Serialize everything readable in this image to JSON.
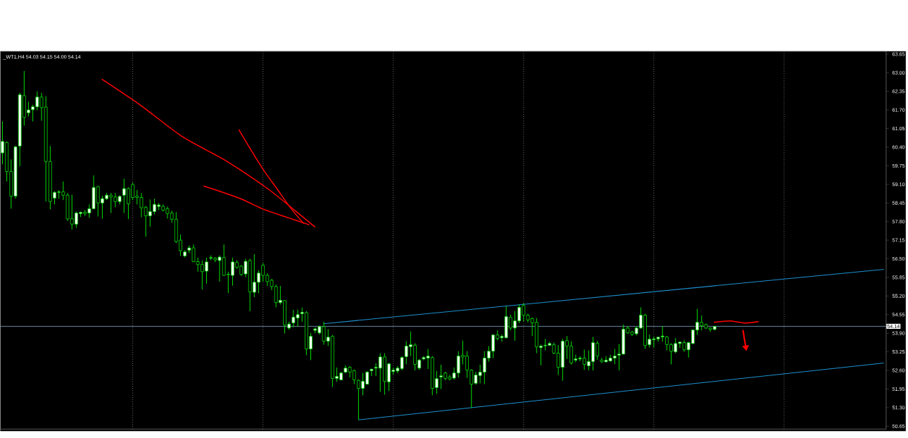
{
  "chart_data": {
    "type": "candlestick",
    "title": "_WT1,H4  54.03 54.15 54.00 54.14",
    "categories": [
      null,
      null,
      null,
      null,
      null,
      null,
      null,
      null,
      null,
      null,
      null,
      null,
      null,
      null,
      null,
      null,
      null,
      null,
      null,
      null,
      null,
      null,
      null,
      null,
      null,
      null,
      null,
      null,
      null,
      null,
      null,
      null,
      null,
      null,
      null,
      null,
      null,
      null,
      null,
      null,
      null,
      null,
      null,
      null,
      null,
      null,
      null,
      null,
      null,
      null,
      null,
      null,
      null,
      null,
      null,
      null,
      null,
      null,
      null,
      null,
      null,
      null,
      null,
      null,
      null,
      null,
      null,
      null,
      null,
      null,
      null,
      null,
      null,
      null,
      null,
      null,
      null,
      null,
      null,
      null,
      null,
      null,
      null,
      null,
      null,
      null,
      null,
      null,
      null,
      null,
      null,
      null,
      null,
      null,
      null,
      null,
      null,
      null,
      null,
      null,
      null,
      null,
      null,
      null,
      null,
      null,
      null,
      null,
      null,
      null,
      null,
      null,
      null,
      null,
      null,
      null,
      null,
      null,
      null,
      null,
      null,
      null,
      null,
      null,
      null,
      null,
      null,
      null,
      null,
      null,
      null,
      null,
      null,
      null,
      null,
      null,
      null,
      null,
      null,
      null,
      null,
      null,
      null,
      null,
      null,
      null,
      null,
      null,
      null,
      null,
      null,
      null,
      null,
      null,
      null,
      null,
      null,
      null,
      null,
      null,
      null,
      null,
      null,
      null,
      null,
      null,
      null,
      null,
      null,
      null,
      null,
      null,
      null,
      null,
      null,
      null,
      null,
      null,
      null,
      null,
      null,
      null,
      null,
      null,
      null,
      null,
      null,
      null,
      null,
      null,
      null,
      null,
      null,
      null,
      null,
      null,
      null,
      null,
      null,
      null,
      null,
      null,
      null,
      null
    ],
    "ohlc": [
      [
        60.2,
        61.3,
        59.8,
        60.6
      ],
      [
        60.56,
        60.6,
        59.2,
        59.55
      ],
      [
        59.55,
        59.97,
        58.25,
        58.69
      ],
      [
        58.69,
        60.45,
        58.6,
        60.41
      ],
      [
        60.44,
        62.3,
        59.73,
        62.23
      ],
      [
        62.2,
        63.06,
        61.15,
        61.44
      ],
      [
        61.6,
        61.98,
        61.47,
        61.7
      ],
      [
        61.71,
        61.88,
        61.3,
        61.81
      ],
      [
        61.81,
        62.35,
        61.69,
        62.15
      ],
      [
        62.15,
        62.3,
        61.32,
        61.78
      ],
      [
        61.8,
        62.18,
        58.5,
        59.9
      ],
      [
        59.9,
        60.44,
        58.23,
        58.5
      ],
      [
        58.62,
        58.86,
        58.4,
        58.82
      ],
      [
        58.82,
        58.9,
        58.6,
        58.84
      ],
      [
        58.84,
        59.2,
        58.55,
        58.72
      ],
      [
        58.72,
        58.8,
        57.82,
        57.89
      ],
      [
        57.9,
        58.74,
        57.52,
        57.71
      ],
      [
        57.71,
        58.15,
        57.58,
        58.1
      ],
      [
        58.08,
        58.15,
        57.96,
        58.12
      ],
      [
        58.13,
        58.2,
        58.0,
        58.08
      ],
      [
        58.1,
        58.4,
        57.93,
        58.25
      ],
      [
        58.25,
        59.41,
        58.23,
        58.99
      ],
      [
        59.02,
        59.05,
        57.98,
        58.45
      ],
      [
        58.45,
        58.7,
        57.9,
        58.6
      ],
      [
        58.6,
        58.8,
        58.55,
        58.72
      ],
      [
        58.72,
        58.8,
        58.1,
        58.66
      ],
      [
        58.66,
        58.8,
        58.3,
        58.5
      ],
      [
        58.5,
        58.72,
        58.4,
        58.68
      ],
      [
        58.72,
        59.3,
        58.1,
        58.95
      ],
      [
        58.95,
        59.0,
        57.89,
        58.42
      ],
      [
        59.09,
        59.16,
        58.55,
        58.64
      ],
      [
        58.69,
        58.9,
        58.4,
        58.64
      ],
      [
        58.64,
        58.8,
        57.95,
        58.28
      ],
      [
        58.3,
        58.35,
        57.27,
        58.0
      ],
      [
        58.0,
        58.57,
        57.62,
        58.15
      ],
      [
        58.15,
        58.6,
        58.05,
        58.4
      ],
      [
        58.33,
        58.45,
        58.2,
        58.38
      ],
      [
        58.33,
        58.4,
        58.15,
        58.2
      ],
      [
        58.25,
        58.33,
        57.9,
        58.08
      ],
      [
        58.1,
        58.18,
        57.76,
        57.88
      ],
      [
        57.88,
        58.13,
        57.05,
        57.1
      ],
      [
        57.15,
        57.35,
        56.6,
        56.78
      ],
      [
        56.6,
        56.8,
        56.55,
        56.74
      ],
      [
        56.8,
        56.97,
        56.7,
        56.88
      ],
      [
        56.88,
        57.0,
        56.38,
        56.4
      ],
      [
        56.4,
        56.54,
        56.05,
        56.3
      ],
      [
        56.3,
        56.44,
        55.43,
        56.05
      ],
      [
        56.07,
        56.54,
        55.63,
        56.39
      ],
      [
        56.52,
        56.62,
        56.45,
        56.54
      ],
      [
        56.52,
        56.56,
        56.38,
        56.46
      ],
      [
        56.44,
        56.62,
        55.7,
        56.56
      ],
      [
        56.54,
        57.0,
        55.9,
        55.92
      ],
      [
        55.96,
        56.05,
        55.3,
        55.94
      ],
      [
        55.92,
        56.54,
        55.56,
        56.39
      ],
      [
        56.37,
        56.45,
        56.15,
        56.2
      ],
      [
        56.24,
        56.28,
        55.9,
        55.95
      ],
      [
        55.97,
        56.5,
        55.85,
        56.41
      ],
      [
        56.44,
        56.5,
        54.67,
        55.34
      ],
      [
        55.33,
        56.66,
        55.16,
        55.68
      ],
      [
        55.68,
        56.1,
        55.3,
        56.0
      ],
      [
        56.27,
        56.35,
        55.7,
        55.92
      ],
      [
        55.92,
        56.0,
        55.55,
        55.7
      ],
      [
        55.75,
        55.8,
        55.4,
        55.53
      ],
      [
        55.53,
        55.6,
        54.8,
        54.97
      ],
      [
        54.97,
        55.55,
        54.9,
        55.05
      ],
      [
        55.04,
        55.06,
        53.89,
        54.18
      ],
      [
        54.08,
        54.3,
        54.02,
        54.22
      ],
      [
        54.26,
        54.72,
        54.1,
        54.46
      ],
      [
        54.43,
        54.72,
        54.13,
        54.55
      ],
      [
        54.58,
        54.8,
        54.3,
        54.63
      ],
      [
        54.62,
        54.67,
        53.13,
        53.35
      ],
      [
        53.35,
        53.91,
        52.96,
        53.79
      ],
      [
        54.0,
        54.1,
        53.9,
        54.05
      ],
      [
        53.91,
        54.17,
        53.85,
        54.13
      ],
      [
        54.13,
        54.3,
        53.5,
        53.62
      ],
      [
        53.62,
        54.04,
        53.45,
        53.76
      ],
      [
        53.79,
        53.84,
        52.02,
        52.32
      ],
      [
        52.32,
        52.7,
        52.2,
        52.39
      ],
      [
        52.27,
        52.55,
        52.25,
        52.51
      ],
      [
        52.54,
        52.78,
        52.5,
        52.68
      ],
      [
        52.71,
        52.75,
        52.35,
        52.54
      ],
      [
        52.59,
        52.63,
        52.12,
        52.27
      ],
      [
        52.25,
        52.29,
        50.87,
        51.97
      ],
      [
        51.97,
        52.51,
        51.73,
        52.22
      ],
      [
        52.12,
        52.58,
        52.1,
        52.54
      ],
      [
        52.59,
        52.66,
        52.4,
        52.64
      ],
      [
        52.68,
        52.85,
        52.4,
        52.71
      ],
      [
        52.68,
        53.2,
        51.85,
        53.07
      ],
      [
        53.07,
        53.2,
        51.75,
        52.22
      ],
      [
        52.2,
        52.86,
        51.88,
        52.83
      ],
      [
        52.56,
        52.7,
        52.45,
        52.61
      ],
      [
        52.58,
        52.75,
        52.5,
        52.68
      ],
      [
        52.66,
        53.1,
        52.6,
        53.05
      ],
      [
        53.08,
        53.62,
        52.81,
        53.45
      ],
      [
        53.43,
        53.96,
        53.1,
        53.5
      ],
      [
        53.48,
        53.55,
        52.6,
        52.81
      ],
      [
        52.68,
        53.0,
        52.62,
        52.96
      ],
      [
        53.0,
        53.1,
        52.95,
        53.05
      ],
      [
        53.03,
        53.35,
        52.65,
        53.1
      ],
      [
        53.05,
        53.1,
        51.73,
        51.97
      ],
      [
        52.0,
        52.58,
        51.78,
        52.31
      ],
      [
        52.37,
        52.8,
        51.95,
        52.41
      ],
      [
        52.51,
        52.55,
        52.25,
        52.32
      ],
      [
        52.37,
        52.45,
        52.25,
        52.3
      ],
      [
        52.33,
        52.7,
        52.28,
        52.51
      ],
      [
        52.51,
        53.27,
        52.35,
        53.1
      ],
      [
        53.13,
        53.64,
        52.81,
        53.07
      ],
      [
        53.1,
        53.27,
        52.34,
        52.61
      ],
      [
        52.61,
        52.64,
        51.29,
        52.12
      ],
      [
        52.15,
        52.55,
        52.1,
        52.44
      ],
      [
        52.42,
        52.8,
        52.15,
        52.54
      ],
      [
        52.54,
        53.27,
        52.12,
        53.03
      ],
      [
        53.03,
        53.45,
        52.9,
        53.27
      ],
      [
        53.27,
        53.86,
        53.03,
        53.84
      ],
      [
        53.84,
        54.0,
        53.65,
        53.72
      ],
      [
        53.74,
        53.86,
        53.6,
        53.79
      ],
      [
        53.74,
        54.84,
        53.72,
        54.48
      ],
      [
        54.45,
        54.55,
        54.0,
        54.08
      ],
      [
        54.08,
        54.67,
        53.64,
        54.33
      ],
      [
        54.33,
        54.9,
        54.25,
        54.8
      ],
      [
        54.87,
        54.95,
        54.3,
        54.53
      ],
      [
        54.53,
        54.58,
        54.28,
        54.36
      ],
      [
        54.41,
        54.45,
        53.8,
        54.26
      ],
      [
        54.28,
        54.43,
        53.2,
        53.42
      ],
      [
        53.4,
        53.5,
        52.78,
        53.45
      ],
      [
        53.46,
        53.7,
        53.3,
        53.48
      ],
      [
        53.48,
        53.6,
        53.45,
        53.54
      ],
      [
        53.5,
        53.57,
        53.17,
        53.2
      ],
      [
        53.2,
        53.49,
        52.44,
        52.71
      ],
      [
        52.71,
        53.7,
        52.24,
        53.62
      ],
      [
        53.64,
        53.8,
        53.0,
        53.45
      ],
      [
        53.45,
        53.62,
        52.8,
        52.86
      ],
      [
        52.96,
        53.15,
        52.88,
        53.0
      ],
      [
        53.0,
        53.1,
        52.92,
        53.03
      ],
      [
        53.03,
        53.33,
        52.62,
        52.81
      ],
      [
        52.76,
        53.3,
        52.6,
        52.91
      ],
      [
        52.91,
        53.77,
        52.6,
        53.57
      ],
      [
        53.55,
        53.63,
        52.97,
        53.1
      ],
      [
        52.96,
        53.04,
        52.86,
        52.9
      ],
      [
        52.9,
        53.1,
        52.88,
        52.96
      ],
      [
        52.93,
        53.15,
        52.9,
        53.03
      ],
      [
        53.03,
        53.35,
        52.82,
        53.1
      ],
      [
        53.13,
        53.52,
        52.6,
        53.17
      ],
      [
        53.17,
        54.2,
        53.15,
        54.04
      ],
      [
        54.08,
        54.15,
        53.88,
        53.91
      ],
      [
        53.94,
        53.98,
        53.8,
        53.86
      ],
      [
        53.88,
        54.14,
        53.82,
        54.08
      ],
      [
        54.08,
        54.8,
        54.05,
        54.53
      ],
      [
        54.53,
        54.58,
        53.35,
        53.47
      ],
      [
        53.5,
        53.85,
        53.4,
        53.69
      ],
      [
        53.67,
        53.78,
        53.4,
        53.7
      ],
      [
        53.7,
        53.78,
        53.6,
        53.76
      ],
      [
        53.77,
        54.15,
        53.6,
        53.8
      ],
      [
        53.77,
        53.8,
        53.3,
        53.5
      ],
      [
        53.5,
        53.55,
        52.81,
        53.27
      ],
      [
        53.25,
        53.73,
        53.2,
        53.54
      ],
      [
        53.54,
        53.6,
        53.38,
        53.59
      ],
      [
        53.57,
        53.65,
        53.25,
        53.32
      ],
      [
        53.32,
        53.6,
        53.05,
        53.57
      ],
      [
        53.54,
        54.03,
        53.52,
        54.01
      ],
      [
        54.01,
        54.75,
        53.84,
        54.28
      ],
      [
        54.28,
        54.52,
        54.0,
        54.16
      ],
      [
        54.2,
        54.24,
        54.05,
        54.08
      ],
      [
        54.08,
        54.1,
        53.95,
        54.03
      ],
      [
        54.03,
        54.15,
        54.0,
        54.14
      ],
      null,
      null,
      null,
      null,
      null,
      null,
      null,
      null,
      null,
      null,
      null,
      null,
      null,
      null,
      null,
      null,
      null,
      null,
      null,
      null,
      null,
      null,
      null,
      null,
      null,
      null,
      null,
      null,
      null,
      null,
      null,
      null,
      null,
      null,
      null,
      null,
      null,
      null,
      null
    ],
    "color": "#00e000",
    "series": [
      {
        "type": "line",
        "color": "#1e90d0",
        "values": [
          null,
          null,
          null,
          null,
          null,
          null,
          null,
          null,
          null,
          null,
          null,
          null,
          null,
          null,
          null,
          null,
          null,
          null,
          null,
          null,
          null,
          null,
          null,
          null,
          null,
          null,
          null,
          null,
          null,
          null,
          null,
          null,
          null,
          null,
          null,
          null,
          null,
          null,
          null,
          null,
          null,
          null,
          null,
          null,
          null,
          null,
          null,
          null,
          null,
          null,
          null,
          null,
          null,
          null,
          null,
          null,
          null,
          null,
          null,
          null,
          null,
          null,
          null,
          null,
          null,
          null,
          null,
          null,
          null,
          null,
          null,
          null,
          null,
          null,
          54.23,
          null,
          null,
          null,
          null,
          null,
          null,
          null,
          null,
          null,
          null,
          null,
          null,
          null,
          null,
          null,
          null,
          null,
          null,
          null,
          null,
          null,
          null,
          null,
          null,
          null,
          null,
          null,
          null,
          null,
          null,
          null,
          null,
          null,
          null,
          null,
          null,
          null,
          null,
          null,
          null,
          null,
          null,
          null,
          null,
          null,
          null,
          null,
          null,
          null,
          null,
          null,
          null,
          null,
          null,
          null,
          null,
          null,
          null,
          null,
          null,
          null,
          null,
          null,
          null,
          null,
          null,
          null,
          null,
          null,
          null,
          null,
          null,
          null,
          null,
          null,
          null,
          null,
          null,
          null,
          null,
          null,
          null,
          null,
          null,
          null,
          null,
          null,
          null,
          null,
          null,
          null,
          null,
          null,
          null,
          null,
          null,
          null,
          null,
          null,
          null,
          null,
          null,
          null,
          null,
          null,
          null,
          null,
          null,
          null,
          null,
          null,
          null,
          null,
          null,
          null,
          null,
          null,
          null,
          null,
          null,
          null,
          null,
          null,
          null,
          null,
          null,
          null,
          null,
          56.13
        ]
      },
      {
        "type": "line",
        "color": "#1e90d0",
        "values": [
          null,
          null,
          null,
          null,
          null,
          null,
          null,
          null,
          null,
          null,
          null,
          null,
          null,
          null,
          null,
          null,
          null,
          null,
          null,
          null,
          null,
          null,
          null,
          null,
          null,
          null,
          null,
          null,
          null,
          null,
          null,
          null,
          null,
          null,
          null,
          null,
          null,
          null,
          null,
          null,
          null,
          null,
          null,
          null,
          null,
          null,
          null,
          null,
          null,
          null,
          null,
          null,
          null,
          null,
          null,
          null,
          null,
          null,
          null,
          null,
          null,
          null,
          null,
          null,
          null,
          null,
          null,
          null,
          null,
          null,
          null,
          null,
          null,
          null,
          null,
          null,
          null,
          null,
          null,
          null,
          null,
          null,
          50.87,
          null,
          null,
          null,
          null,
          null,
          null,
          null,
          null,
          null,
          null,
          null,
          null,
          null,
          null,
          null,
          null,
          null,
          null,
          null,
          null,
          null,
          null,
          null,
          null,
          null,
          null,
          null,
          null,
          null,
          null,
          null,
          null,
          null,
          null,
          null,
          null,
          null,
          null,
          null,
          null,
          null,
          null,
          null,
          null,
          null,
          null,
          null,
          null,
          null,
          null,
          null,
          null,
          null,
          null,
          null,
          null,
          null,
          null,
          null,
          null,
          null,
          null,
          null,
          null,
          null,
          null,
          null,
          null,
          null,
          null,
          null,
          null,
          null,
          null,
          null,
          null,
          null,
          null,
          null,
          null,
          null,
          null,
          null,
          null,
          null,
          null,
          null,
          null,
          null,
          null,
          null,
          null,
          null,
          null,
          null,
          null,
          null,
          null,
          null,
          null,
          null,
          null,
          null,
          null,
          null,
          null,
          null,
          null,
          null,
          null,
          null,
          null,
          null,
          null,
          null,
          null,
          null,
          null,
          null,
          null,
          52.86
        ]
      }
    ],
    "ref_lines": [
      {
        "axis": "y",
        "value": 54.14,
        "label": "54.14",
        "color": "#7fa6c8"
      }
    ],
    "ylim": [
      50.55,
      63.75
    ],
    "yticks": [
      50.65,
      {
        "value": 51.3,
        "label": "51.30"
      },
      51.95,
      {
        "value": 52.6,
        "label": "52.60"
      },
      53.25,
      {
        "value": 53.9,
        "label": "53.90"
      },
      54.55,
      {
        "value": 55.2,
        "label": "55.20"
      },
      55.85,
      {
        "value": 56.5,
        "label": "56.50"
      },
      57.15,
      {
        "value": 57.8,
        "label": "57.80"
      },
      58.45,
      {
        "value": 59.1,
        "label": "59.10"
      },
      59.75,
      {
        "value": 60.4,
        "label": "60.40"
      },
      61.05,
      {
        "value": 61.7,
        "label": "61.70"
      },
      62.35,
      {
        "value": 63.0,
        "label": "63.00"
      },
      63.65
    ],
    "grid": "x",
    "tick_labels": "y"
  }
}
